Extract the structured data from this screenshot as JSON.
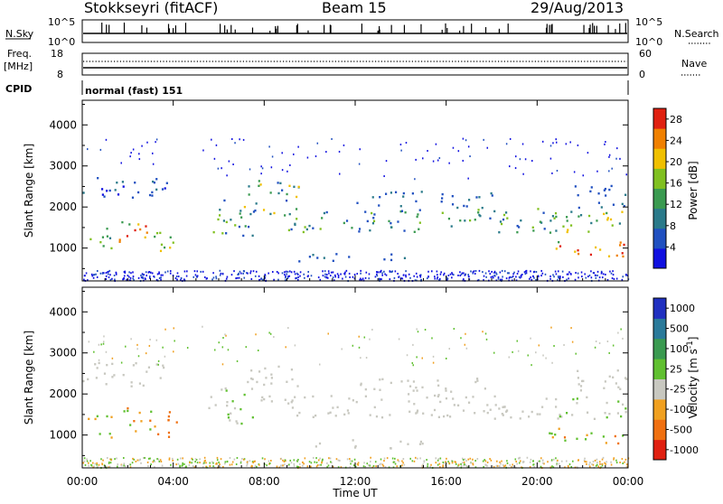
{
  "header": {
    "station": "Stokkseyri (fitACF)",
    "beam": "Beam 15",
    "date": "29/Aug/2013"
  },
  "panels": {
    "nsky": {
      "label": "N.Sky",
      "left_ticks": [
        "10^5",
        "10^0"
      ],
      "right_ticks": [
        "10^5",
        "10^0"
      ],
      "right_label": "N.Search"
    },
    "freq": {
      "label_line1": "Freq.",
      "label_line2": "[MHz]",
      "left_ticks": [
        "18",
        "8"
      ],
      "right_ticks": [
        "60",
        "0"
      ],
      "right_label": "Nave"
    },
    "cpid": {
      "label": "CPID",
      "mode_text": "normal (fast) 151"
    }
  },
  "x_axis": {
    "label": "Time UT",
    "ticks": [
      "00:00",
      "04:00",
      "08:00",
      "12:00",
      "16:00",
      "20:00",
      "00:00"
    ]
  },
  "chart_data": [
    {
      "type": "heatmap",
      "name": "power",
      "ylabel": "Slant Range [km]",
      "y_ticks": [
        "1000",
        "2000",
        "3000",
        "4000"
      ],
      "ylim": [
        200,
        4600
      ],
      "xlim_hours": [
        0,
        24
      ],
      "colorbar": {
        "label": "Power [dB]",
        "ticks": [
          "4",
          "8",
          "12",
          "16",
          "20",
          "24",
          "28"
        ],
        "range": [
          0,
          30
        ],
        "colors": [
          "#1010e0",
          "#2050c0",
          "#2a7a8a",
          "#3a9a50",
          "#80c020",
          "#f0c000",
          "#f08000",
          "#e02010"
        ]
      }
    },
    {
      "type": "heatmap",
      "name": "velocity",
      "ylabel": "Slant Range [km]",
      "y_ticks": [
        "1000",
        "2000",
        "3000",
        "4000"
      ],
      "ylim": [
        200,
        4600
      ],
      "xlim_hours": [
        0,
        24
      ],
      "colorbar": {
        "label": "Velocity [m s",
        "label_sup": "-1",
        "label_end": "]",
        "ticks": [
          "1000",
          "500",
          "100",
          "25",
          "-25",
          "-100",
          "-500",
          "-1000"
        ],
        "colors": [
          "#2030c0",
          "#2a7a9a",
          "#3a9a50",
          "#60c030",
          "#c8c8c0",
          "#f0a020",
          "#f07010",
          "#e02010"
        ]
      }
    }
  ]
}
